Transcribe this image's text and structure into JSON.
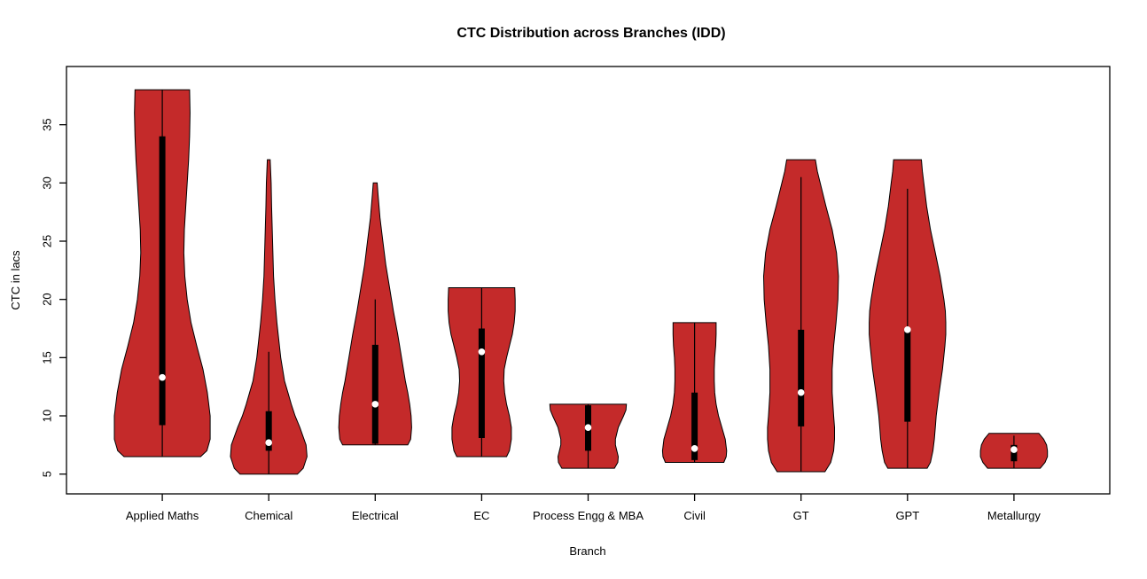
{
  "chart_data": {
    "type": "violin",
    "title": "CTC Distribution across Branches (IDD)",
    "xlabel": "Branch",
    "ylabel": "CTC in lacs",
    "categories": [
      "Applied Maths",
      "Chemical",
      "Electrical",
      "EC",
      "Process Engg & MBA",
      "Civil",
      "GT",
      "GPT",
      "Metallurgy"
    ],
    "y_ticks": [
      5,
      10,
      15,
      20,
      25,
      30,
      35
    ],
    "ylim": [
      3.3,
      40.0
    ],
    "xlim": [
      0.1,
      9.9
    ],
    "max_violin_halfwidth_units": 0.45,
    "fill_color": "#C42A2A",
    "stroke_color": "#000000",
    "median_dot_color": "#ffffff",
    "violins": [
      {
        "name": "Applied Maths",
        "min": 6.5,
        "max": 38.0,
        "median": 13.3,
        "q1": 9.2,
        "q3": 34.0,
        "whisker_low": 6.5,
        "whisker_high": 38.0,
        "shape": [
          [
            6.5,
            0.8
          ],
          [
            7,
            0.93
          ],
          [
            8,
            1.0
          ],
          [
            10,
            1.0
          ],
          [
            12,
            0.94
          ],
          [
            14,
            0.85
          ],
          [
            16,
            0.72
          ],
          [
            18,
            0.6
          ],
          [
            20,
            0.52
          ],
          [
            22,
            0.47
          ],
          [
            24,
            0.45
          ],
          [
            26,
            0.46
          ],
          [
            28,
            0.49
          ],
          [
            30,
            0.52
          ],
          [
            32,
            0.55
          ],
          [
            34,
            0.57
          ],
          [
            36,
            0.58
          ],
          [
            38,
            0.57
          ]
        ]
      },
      {
        "name": "Chemical",
        "min": 5.0,
        "max": 32.0,
        "median": 7.7,
        "q1": 7.0,
        "q3": 10.4,
        "whisker_low": 5.0,
        "whisker_high": 15.5,
        "shape": [
          [
            5,
            0.6
          ],
          [
            5.5,
            0.72
          ],
          [
            6.5,
            0.8
          ],
          [
            7.5,
            0.78
          ],
          [
            9,
            0.65
          ],
          [
            10,
            0.55
          ],
          [
            11,
            0.47
          ],
          [
            12,
            0.4
          ],
          [
            13,
            0.33
          ],
          [
            15,
            0.25
          ],
          [
            18,
            0.17
          ],
          [
            20,
            0.13
          ],
          [
            22,
            0.1
          ],
          [
            25,
            0.08
          ],
          [
            28,
            0.06
          ],
          [
            30,
            0.05
          ],
          [
            32,
            0.03
          ]
        ]
      },
      {
        "name": "Electrical",
        "min": 7.5,
        "max": 30.0,
        "median": 11.0,
        "q1": 7.6,
        "q3": 16.1,
        "whisker_low": 7.5,
        "whisker_high": 20.0,
        "shape": [
          [
            7.5,
            0.68
          ],
          [
            8,
            0.74
          ],
          [
            9,
            0.76
          ],
          [
            10,
            0.75
          ],
          [
            11,
            0.72
          ],
          [
            12,
            0.68
          ],
          [
            13,
            0.63
          ],
          [
            15,
            0.55
          ],
          [
            17,
            0.47
          ],
          [
            19,
            0.38
          ],
          [
            21,
            0.3
          ],
          [
            23,
            0.22
          ],
          [
            25,
            0.16
          ],
          [
            27,
            0.1
          ],
          [
            29,
            0.06
          ],
          [
            30,
            0.04
          ]
        ]
      },
      {
        "name": "EC",
        "min": 6.5,
        "max": 21.0,
        "median": 15.5,
        "q1": 8.1,
        "q3": 17.5,
        "whisker_low": 6.5,
        "whisker_high": 21.0,
        "shape": [
          [
            6.5,
            0.52
          ],
          [
            7,
            0.58
          ],
          [
            8,
            0.62
          ],
          [
            9,
            0.62
          ],
          [
            10,
            0.58
          ],
          [
            11,
            0.52
          ],
          [
            12,
            0.48
          ],
          [
            13,
            0.46
          ],
          [
            14,
            0.47
          ],
          [
            15,
            0.52
          ],
          [
            16,
            0.58
          ],
          [
            17,
            0.64
          ],
          [
            18,
            0.68
          ],
          [
            19,
            0.7
          ],
          [
            20,
            0.7
          ],
          [
            21,
            0.69
          ]
        ]
      },
      {
        "name": "Process Engg & MBA",
        "min": 5.5,
        "max": 11.0,
        "median": 9.0,
        "q1": 7.0,
        "q3": 10.9,
        "whisker_low": 5.5,
        "whisker_high": 11.0,
        "shape": [
          [
            5.5,
            0.55
          ],
          [
            6,
            0.62
          ],
          [
            6.5,
            0.63
          ],
          [
            7,
            0.6
          ],
          [
            7.5,
            0.57
          ],
          [
            8,
            0.57
          ],
          [
            9,
            0.63
          ],
          [
            10,
            0.74
          ],
          [
            10.5,
            0.79
          ],
          [
            11,
            0.8
          ]
        ]
      },
      {
        "name": "Civil",
        "min": 6.0,
        "max": 18.0,
        "median": 7.2,
        "q1": 6.2,
        "q3": 12.0,
        "whisker_low": 6.0,
        "whisker_high": 18.0,
        "shape": [
          [
            6,
            0.61
          ],
          [
            6.5,
            0.66
          ],
          [
            7,
            0.67
          ],
          [
            8,
            0.64
          ],
          [
            9,
            0.57
          ],
          [
            10,
            0.5
          ],
          [
            11,
            0.45
          ],
          [
            12,
            0.42
          ],
          [
            13,
            0.41
          ],
          [
            14,
            0.41
          ],
          [
            15,
            0.42
          ],
          [
            16,
            0.44
          ],
          [
            17,
            0.45
          ],
          [
            18,
            0.45
          ]
        ]
      },
      {
        "name": "GT",
        "min": 5.2,
        "max": 32.0,
        "median": 12.0,
        "q1": 9.1,
        "q3": 17.4,
        "whisker_low": 5.2,
        "whisker_high": 30.5,
        "shape": [
          [
            5.2,
            0.5
          ],
          [
            6,
            0.62
          ],
          [
            7,
            0.68
          ],
          [
            8,
            0.7
          ],
          [
            9,
            0.7
          ],
          [
            10,
            0.68
          ],
          [
            12,
            0.65
          ],
          [
            14,
            0.65
          ],
          [
            16,
            0.68
          ],
          [
            18,
            0.73
          ],
          [
            20,
            0.77
          ],
          [
            22,
            0.78
          ],
          [
            24,
            0.74
          ],
          [
            26,
            0.65
          ],
          [
            28,
            0.52
          ],
          [
            30,
            0.4
          ],
          [
            31,
            0.34
          ],
          [
            32,
            0.3
          ]
        ]
      },
      {
        "name": "GPT",
        "min": 5.5,
        "max": 32.0,
        "median": 17.4,
        "q1": 9.5,
        "q3": 17.5,
        "whisker_low": 5.5,
        "whisker_high": 29.5,
        "shape": [
          [
            5.5,
            0.41
          ],
          [
            6,
            0.48
          ],
          [
            7,
            0.53
          ],
          [
            8,
            0.56
          ],
          [
            9,
            0.58
          ],
          [
            10,
            0.6
          ],
          [
            12,
            0.66
          ],
          [
            14,
            0.73
          ],
          [
            16,
            0.78
          ],
          [
            17,
            0.8
          ],
          [
            18,
            0.8
          ],
          [
            19,
            0.79
          ],
          [
            20,
            0.76
          ],
          [
            22,
            0.68
          ],
          [
            24,
            0.58
          ],
          [
            26,
            0.48
          ],
          [
            28,
            0.4
          ],
          [
            30,
            0.34
          ],
          [
            31,
            0.31
          ],
          [
            32,
            0.29
          ]
        ]
      },
      {
        "name": "Metallurgy",
        "min": 5.5,
        "max": 8.5,
        "median": 7.1,
        "q1": 6.1,
        "q3": 7.5,
        "whisker_low": 5.5,
        "whisker_high": 8.3,
        "shape": [
          [
            5.5,
            0.55
          ],
          [
            6,
            0.65
          ],
          [
            6.5,
            0.7
          ],
          [
            7,
            0.7
          ],
          [
            7.5,
            0.68
          ],
          [
            8,
            0.62
          ],
          [
            8.5,
            0.52
          ]
        ]
      }
    ]
  }
}
